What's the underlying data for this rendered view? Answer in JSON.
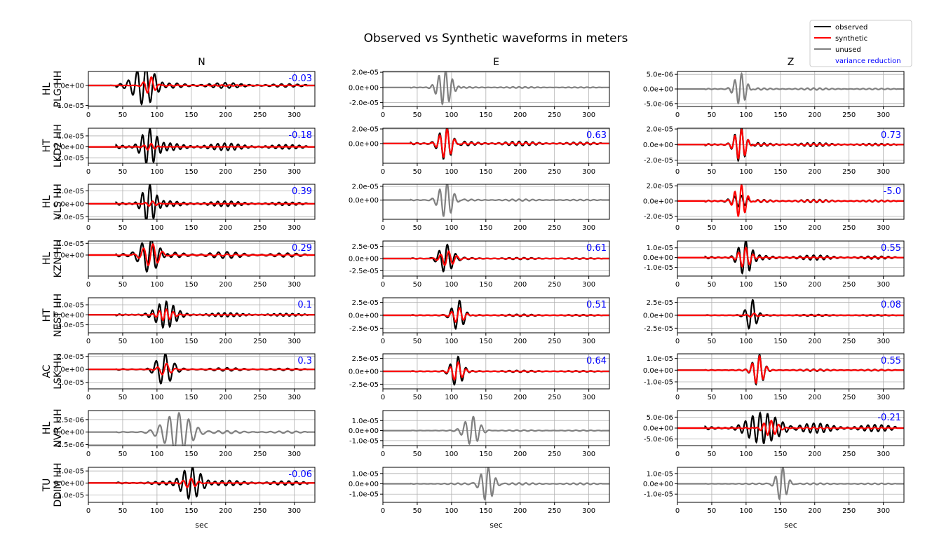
{
  "chart_data": {
    "type": "line",
    "title": "Observed vs Synthetic waveforms in meters",
    "xlabel": "sec",
    "xlim": [
      0,
      330
    ],
    "xticks": [
      0,
      50,
      100,
      150,
      200,
      250,
      300
    ],
    "grid": true,
    "legend_placement": "top-right",
    "columns": [
      "N",
      "E",
      "Z"
    ],
    "legend": [
      {
        "label": "observed",
        "color": "#000000"
      },
      {
        "label": "synthetic",
        "color": "#ff0000"
      },
      {
        "label": "unused",
        "color": "#808080"
      },
      {
        "label": "variance reduction",
        "color": "#0000ff"
      }
    ],
    "stations": [
      {
        "row_label": [
          "HL",
          "PLG HH"
        ],
        "panels": [
          {
            "status": "used",
            "vr": "-0.03",
            "yticks": [
              "-1.0e-05",
              "0.0e+00"
            ],
            "yvals": [
              -1e-05,
              0
            ],
            "ylim": [
              -1.05e-05,
              7e-06
            ],
            "obs": {
              "center": 82,
              "period": 13,
              "amp": 9.5e-06,
              "width": 20,
              "tail": 0.12
            },
            "syn": {
              "center": 90,
              "period": 12,
              "amp": 4.5e-06,
              "width": 10,
              "tail": 0.05
            }
          },
          {
            "status": "unused",
            "vr": "",
            "yticks": [
              "-2.0e-05",
              "0.0e+00",
              "2.0e-05"
            ],
            "yvals": [
              -2e-05,
              0,
              2e-05
            ],
            "ylim": [
              -2.5e-05,
              2.1e-05
            ],
            "obs": {
              "center": 90,
              "period": 10,
              "amp": 2.3e-05,
              "width": 13,
              "tail": 0.03
            }
          },
          {
            "status": "unused",
            "vr": "",
            "yticks": [
              "-5.0e-06",
              "0.0e+00",
              "5.0e-06"
            ],
            "yvals": [
              -5e-06,
              0,
              5e-06
            ],
            "ylim": [
              -6e-06,
              6e-06
            ],
            "obs": {
              "center": 92,
              "period": 10,
              "amp": 5.5e-06,
              "width": 11,
              "tail": 0.05
            }
          }
        ]
      },
      {
        "row_label": [
          "HT",
          "LKD2 HH"
        ],
        "panels": [
          {
            "status": "used",
            "vr": "-0.18",
            "yticks": [
              "-1.0e-05",
              "0.0e+00",
              "1.0e-05"
            ],
            "yvals": [
              -1e-05,
              0,
              1e-05
            ],
            "ylim": [
              -1.5e-05,
              1.7e-05
            ],
            "obs": {
              "center": 88,
              "period": 11,
              "amp": 1.5e-05,
              "width": 14,
              "tail": 0.18
            },
            "syn": {
              "center": 90,
              "period": 11,
              "amp": 3e-06,
              "width": 10,
              "tail": 0.05
            }
          },
          {
            "status": "used",
            "vr": "0.63",
            "yticks": [
              "0.0e+00",
              "2.0e-05"
            ],
            "yvals": [
              0,
              2e-05
            ],
            "ylim": [
              -2.7e-05,
              2.1e-05
            ],
            "obs": {
              "center": 92,
              "period": 11,
              "amp": 2.4e-05,
              "width": 13,
              "tail": 0.1
            },
            "syn": {
              "center": 92,
              "period": 11,
              "amp": 2.1e-05,
              "width": 12,
              "tail": 0.05
            }
          },
          {
            "status": "used",
            "vr": "0.73",
            "yticks": [
              "-2.0e-05",
              "0.0e+00",
              "2.0e-05"
            ],
            "yvals": [
              -2e-05,
              0,
              2e-05
            ],
            "ylim": [
              -2.4e-05,
              2.1e-05
            ],
            "obs": {
              "center": 92,
              "period": 10,
              "amp": 2.3e-05,
              "width": 11,
              "tail": 0.08
            },
            "syn": {
              "center": 92,
              "period": 10,
              "amp": 2e-05,
              "width": 11,
              "tail": 0.04
            }
          }
        ]
      },
      {
        "row_label": [
          "HL",
          "VLS HH"
        ],
        "panels": [
          {
            "status": "used",
            "vr": "0.39",
            "yticks": [
              "-2.0e-05",
              "0.0e+00",
              "2.0e-05"
            ],
            "yvals": [
              -2e-05,
              0,
              2e-05
            ],
            "ylim": [
              -2.4e-05,
              3e-05
            ],
            "obs": {
              "center": 88,
              "period": 11,
              "amp": 2.8e-05,
              "width": 12,
              "tail": 0.12
            },
            "syn": {
              "center": 92,
              "period": 11,
              "amp": 4e-06,
              "width": 10,
              "tail": 0.04
            }
          },
          {
            "status": "unused",
            "vr": "",
            "yticks": [
              "0.0e+00",
              "2.0e-05"
            ],
            "yvals": [
              0,
              2e-05
            ],
            "ylim": [
              -2.8e-05,
              2.3e-05
            ],
            "obs": {
              "center": 92,
              "period": 11,
              "amp": 2.6e-05,
              "width": 13,
              "tail": 0.04
            }
          },
          {
            "status": "used",
            "vr": "-5.0",
            "yticks": [
              "-2.0e-05",
              "0.0e+00",
              "2.0e-05"
            ],
            "yvals": [
              -2e-05,
              0,
              2e-05
            ],
            "ylim": [
              -2.4e-05,
              2.2e-05
            ],
            "obs": {
              "center": 92,
              "period": 10,
              "amp": 8e-06,
              "width": 16,
              "tail": 0.2
            },
            "syn": {
              "center": 92,
              "period": 10,
              "amp": 2.2e-05,
              "width": 11,
              "tail": 0.05
            }
          }
        ]
      },
      {
        "row_label": [
          "HL",
          "KZN HH"
        ],
        "panels": [
          {
            "status": "used",
            "vr": "0.29",
            "yticks": [
              "0.0e+00",
              "1.0e-05"
            ],
            "yvals": [
              0,
              1e-05
            ],
            "ylim": [
              -1.8e-05,
              1.2e-05
            ],
            "obs": {
              "center": 90,
              "period": 14,
              "amp": 1.5e-05,
              "width": 18,
              "tail": 0.15
            },
            "syn": {
              "center": 92,
              "period": 14,
              "amp": 1e-05,
              "width": 16,
              "tail": 0.06
            }
          },
          {
            "status": "used",
            "vr": "0.61",
            "yticks": [
              "-2.5e-05",
              "0.0e+00",
              "2.5e-05"
            ],
            "yvals": [
              -2.5e-05,
              0,
              2.5e-05
            ],
            "ylim": [
              -3.6e-05,
              3.6e-05
            ],
            "obs": {
              "center": 92,
              "period": 12,
              "amp": 3e-05,
              "width": 13,
              "tail": 0.05
            },
            "syn": {
              "center": 94,
              "period": 12,
              "amp": 1.5e-05,
              "width": 13,
              "tail": 0.04
            }
          },
          {
            "status": "used",
            "vr": "0.55",
            "yticks": [
              "-1.0e-05",
              "0.0e+00",
              "1.0e-05"
            ],
            "yvals": [
              -1e-05,
              0,
              1e-05
            ],
            "ylim": [
              -1.9e-05,
              1.7e-05
            ],
            "obs": {
              "center": 98,
              "period": 11,
              "amp": 1.6e-05,
              "width": 12,
              "tail": 0.12
            },
            "syn": {
              "center": 98,
              "period": 11,
              "amp": 1e-05,
              "width": 11,
              "tail": 0.05
            }
          }
        ]
      },
      {
        "row_label": [
          "HT",
          "NEST HH"
        ],
        "panels": [
          {
            "status": "used",
            "vr": "0.1",
            "yticks": [
              "-1.0e-05",
              "0.0e+00",
              "1.0e-05"
            ],
            "yvals": [
              -1e-05,
              0,
              1e-05
            ],
            "ylim": [
              -1.8e-05,
              1.7e-05
            ],
            "obs": {
              "center": 112,
              "period": 10,
              "amp": 1.5e-05,
              "width": 18,
              "tail": 0.1
            },
            "syn": {
              "center": 112,
              "period": 10,
              "amp": 6e-06,
              "width": 14,
              "tail": 0.04
            }
          },
          {
            "status": "used",
            "vr": "0.51",
            "yticks": [
              "-2.5e-05",
              "0.0e+00",
              "2.5e-05"
            ],
            "yvals": [
              -2.5e-05,
              0,
              2.5e-05
            ],
            "ylim": [
              -3.4e-05,
              3.4e-05
            ],
            "obs": {
              "center": 110,
              "period": 12,
              "amp": 3e-05,
              "width": 11,
              "tail": 0.05
            },
            "syn": {
              "center": 110,
              "period": 12,
              "amp": 1.5e-05,
              "width": 11,
              "tail": 0.03
            }
          },
          {
            "status": "used",
            "vr": "0.08",
            "yticks": [
              "-2.5e-05",
              "0.0e+00",
              "2.5e-05"
            ],
            "yvals": [
              -2.5e-05,
              0,
              2.5e-05
            ],
            "ylim": [
              -3.4e-05,
              3.4e-05
            ],
            "obs": {
              "center": 108,
              "period": 12,
              "amp": 3e-05,
              "width": 9,
              "tail": 0.04
            },
            "syn": {
              "center": 110,
              "period": 12,
              "amp": 4e-06,
              "width": 9,
              "tail": 0.02
            }
          }
        ]
      },
      {
        "row_label": [
          "AC",
          "LSK HH"
        ],
        "panels": [
          {
            "status": "used",
            "vr": "0.3",
            "yticks": [
              "-2.0e-05",
              "0.0e+00",
              "2.0e-05"
            ],
            "yvals": [
              -2e-05,
              0,
              2e-05
            ],
            "ylim": [
              -3e-05,
              2.4e-05
            ],
            "obs": {
              "center": 110,
              "period": 14,
              "amp": 2.3e-05,
              "width": 15,
              "tail": 0.08
            },
            "syn": {
              "center": 112,
              "period": 14,
              "amp": 9e-06,
              "width": 11,
              "tail": 0.04
            }
          },
          {
            "status": "used",
            "vr": "0.64",
            "yticks": [
              "-2.5e-05",
              "0.0e+00",
              "2.5e-05"
            ],
            "yvals": [
              -2.5e-05,
              0,
              2.5e-05
            ],
            "ylim": [
              -3.4e-05,
              3.4e-05
            ],
            "obs": {
              "center": 108,
              "period": 12,
              "amp": 2.8e-05,
              "width": 11,
              "tail": 0.05
            },
            "syn": {
              "center": 108,
              "period": 12,
              "amp": 1.8e-05,
              "width": 11,
              "tail": 0.03
            }
          },
          {
            "status": "used",
            "vr": "0.55",
            "yticks": [
              "-1.0e-05",
              "0.0e+00",
              "1.0e-05"
            ],
            "yvals": [
              -1e-05,
              0,
              1e-05
            ],
            "ylim": [
              -1.6e-05,
              1.4e-05
            ],
            "obs": {
              "center": 118,
              "period": 11,
              "amp": 1.3e-05,
              "width": 10,
              "tail": 0.05
            },
            "syn": {
              "center": 118,
              "period": 11,
              "amp": 1.2e-05,
              "width": 10,
              "tail": 0.03
            }
          }
        ]
      },
      {
        "row_label": [
          "HL",
          "NVR HH"
        ],
        "panels": [
          {
            "status": "unused",
            "vr": "",
            "yticks": [
              "-2.5e-06",
              "0.0e+00",
              "2.5e-06"
            ],
            "yvals": [
              -2.5e-06,
              0,
              2.5e-06
            ],
            "ylim": [
              -2.7e-06,
              4.3e-06
            ],
            "obs": {
              "center": 130,
              "period": 14,
              "amp": 4e-06,
              "width": 25,
              "tail": 0.05
            }
          },
          {
            "status": "unused",
            "vr": "",
            "yticks": [
              "-1.0e-05",
              "0.0e+00",
              "1.0e-05"
            ],
            "yvals": [
              -1e-05,
              0,
              1e-05
            ],
            "ylim": [
              -1.5e-05,
              2e-05
            ],
            "obs": {
              "center": 130,
              "period": 12,
              "amp": 1.4e-05,
              "width": 14,
              "tail": 0.03
            }
          },
          {
            "status": "used",
            "vr": "-0.21",
            "yticks": [
              "-5.0e-06",
              "0.0e+00",
              "5.0e-06"
            ],
            "yvals": [
              -5e-06,
              0,
              5e-06
            ],
            "ylim": [
              -8e-06,
              8e-06
            ],
            "obs": {
              "center": 130,
              "period": 11,
              "amp": 6.5e-06,
              "width": 28,
              "tail": 0.25
            },
            "syn": {
              "center": 135,
              "period": 11,
              "amp": 3.5e-06,
              "width": 14,
              "tail": 0.08
            }
          }
        ]
      },
      {
        "row_label": [
          "TU",
          "DDIM HH"
        ],
        "panels": [
          {
            "status": "used",
            "vr": "-0.06",
            "yticks": [
              "-1.0e-05",
              "0.0e+00",
              "1.0e-05"
            ],
            "yvals": [
              -1e-05,
              0,
              1e-05
            ],
            "ylim": [
              -1.6e-05,
              1.3e-05
            ],
            "obs": {
              "center": 150,
              "period": 12,
              "amp": 1.3e-05,
              "width": 18,
              "tail": 0.12
            },
            "syn": {
              "center": 148,
              "period": 12,
              "amp": 4e-06,
              "width": 12,
              "tail": 0.04
            }
          },
          {
            "status": "unused",
            "vr": "",
            "yticks": [
              "-1.0e-05",
              "0.0e+00",
              "1.0e-05"
            ],
            "yvals": [
              -1e-05,
              0,
              1e-05
            ],
            "ylim": [
              -1.8e-05,
              1.6e-05
            ],
            "obs": {
              "center": 152,
              "period": 11,
              "amp": 1.7e-05,
              "width": 12,
              "tail": 0.04
            }
          },
          {
            "status": "unused",
            "vr": "",
            "yticks": [
              "-1.0e-05",
              "0.0e+00",
              "1.0e-05"
            ],
            "yvals": [
              -1e-05,
              0,
              1e-05
            ],
            "ylim": [
              -1.8e-05,
              1.6e-05
            ],
            "obs": {
              "center": 152,
              "period": 11,
              "amp": 1.7e-05,
              "width": 10,
              "tail": 0.03
            }
          }
        ]
      }
    ]
  }
}
